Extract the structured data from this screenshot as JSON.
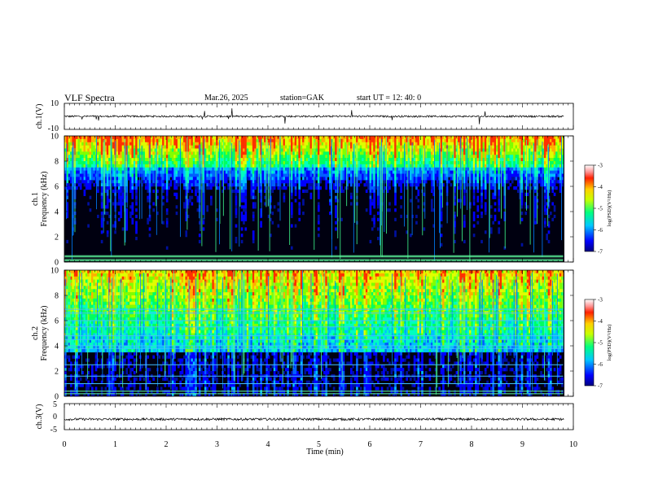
{
  "header": {
    "title": "VLF  Spectra",
    "date": "Mar.26, 2025",
    "station": "station=GAK",
    "start": "start  UT  =    12: 40: 0"
  },
  "chart_data": [
    {
      "type": "line",
      "name": "waveform-ch1",
      "ylabel": "ch.1(V)",
      "ylim": [
        -10,
        10
      ],
      "yticks": [
        "10",
        "-10"
      ],
      "xlim": [
        0,
        10
      ],
      "baseline": 0
    },
    {
      "type": "heatmap",
      "name": "spectrogram-ch1",
      "ylabel": "ch.1\nFrequency  (kHz)",
      "ylabel_lines": [
        "ch.1",
        "Frequency  (kHz)"
      ],
      "ylim": [
        0,
        10
      ],
      "yticks": [
        "0",
        "2",
        "4",
        "6",
        "8",
        "10"
      ],
      "xlim": [
        0,
        10
      ],
      "data_extent_min": 9.8,
      "colorbar": {
        "label": "log(PSD)(V²/Hz)",
        "range": [
          -7,
          -3
        ],
        "ticks": [
          "-3",
          "-4",
          "-5",
          "-6",
          "-7"
        ]
      }
    },
    {
      "type": "heatmap",
      "name": "spectrogram-ch2",
      "ylabel": "ch.2\nFrequency  (kHz)",
      "ylabel_lines": [
        "ch.2",
        "Frequency  (kHz)"
      ],
      "ylim": [
        0,
        10
      ],
      "yticks": [
        "0",
        "2",
        "4",
        "6",
        "8",
        "10"
      ],
      "xlim": [
        0,
        10
      ],
      "data_extent_min": 9.8,
      "colorbar": {
        "label": "log(PSD)(V²/Hz)",
        "range": [
          -7,
          -3
        ],
        "ticks": [
          "-3",
          "-4",
          "-5",
          "-6",
          "-7"
        ]
      }
    },
    {
      "type": "line",
      "name": "waveform-ch3",
      "ylabel": "ch.3(V)",
      "ylim": [
        -5,
        5
      ],
      "yticks": [
        "5",
        "0",
        "-5"
      ],
      "xlim": [
        0,
        10
      ],
      "baseline": -1
    }
  ],
  "xaxis": {
    "label": "Time  (min)",
    "ticks": [
      "0",
      "1",
      "2",
      "3",
      "4",
      "5",
      "6",
      "7",
      "8",
      "9",
      "10"
    ],
    "range": [
      0,
      10
    ]
  }
}
